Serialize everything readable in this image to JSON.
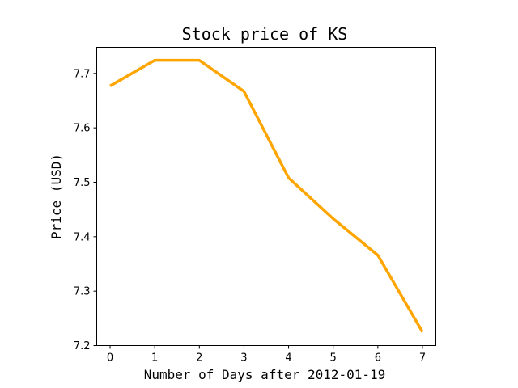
{
  "chart_data": {
    "type": "line",
    "title": "Stock price of KS",
    "xlabel": "Number of Days after 2012-01-19",
    "ylabel": "Price (USD)",
    "x": [
      0,
      1,
      2,
      3,
      4,
      5,
      6,
      7
    ],
    "series": [
      {
        "values": [
          7.677,
          7.724,
          7.724,
          7.667,
          7.508,
          7.433,
          7.366,
          7.225
        ],
        "color": "#ffa500"
      }
    ],
    "xlim": [
      -0.3,
      7.3
    ],
    "ylim": [
      7.2,
      7.748
    ],
    "xticks": [
      0,
      1,
      2,
      3,
      4,
      5,
      6,
      7
    ],
    "xtick_labels": [
      "0",
      "1",
      "2",
      "3",
      "4",
      "5",
      "6",
      "7"
    ],
    "yticks": [
      7.2,
      7.3,
      7.4,
      7.5,
      7.6,
      7.7
    ],
    "ytick_labels": [
      "7.2",
      "7.3",
      "7.4",
      "7.5",
      "7.6",
      "7.7"
    ],
    "grid": false,
    "legend": "none"
  }
}
